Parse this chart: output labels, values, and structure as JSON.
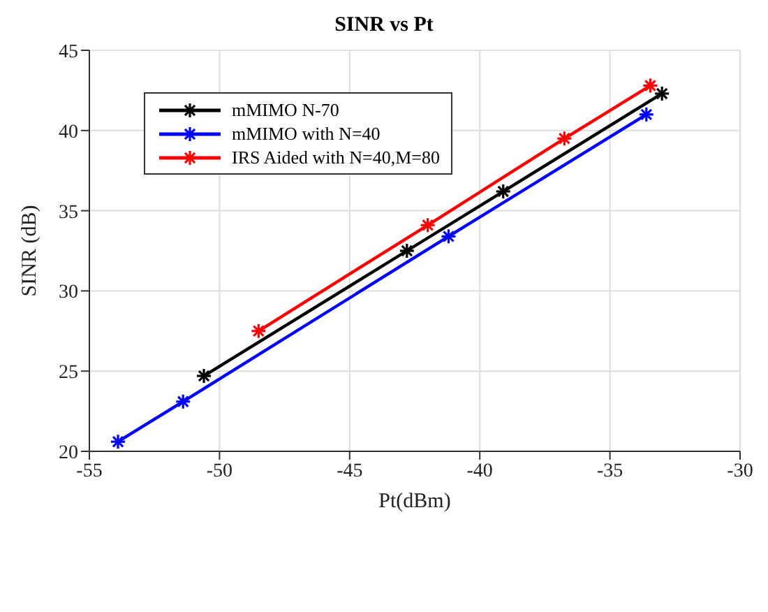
{
  "chart_data": {
    "type": "line",
    "title": "SINR vs Pt",
    "xlabel": "Pt(dBm)",
    "ylabel": "SINR (dB)",
    "xlim": [
      -55,
      -30
    ],
    "xticks": [
      -55,
      -50,
      -45,
      -40,
      -35,
      -30
    ],
    "ylim": [
      20,
      45
    ],
    "yticks": [
      20,
      25,
      30,
      35,
      40,
      45
    ],
    "grid": true,
    "legend": "top left",
    "marker": "cross",
    "line_style": "solid",
    "series": [
      {
        "name": "mMIMO N-70",
        "color": "#000000",
        "x": [
          -50.6,
          -42.8,
          -39.1,
          -33.0
        ],
        "values": [
          24.7,
          32.5,
          36.2,
          42.3
        ]
      },
      {
        "name": "mMIMO with N=40",
        "color": "#0000ff",
        "x": [
          -53.9,
          -51.4,
          -41.2,
          -33.6
        ],
        "values": [
          20.6,
          23.1,
          33.4,
          41.0
        ]
      },
      {
        "name": "IRS Aided with N=40,M=80",
        "color": "#ff0000",
        "x": [
          -48.5,
          -42.0,
          -36.75,
          -33.45
        ],
        "values": [
          27.5,
          34.1,
          39.5,
          42.8
        ]
      }
    ]
  }
}
